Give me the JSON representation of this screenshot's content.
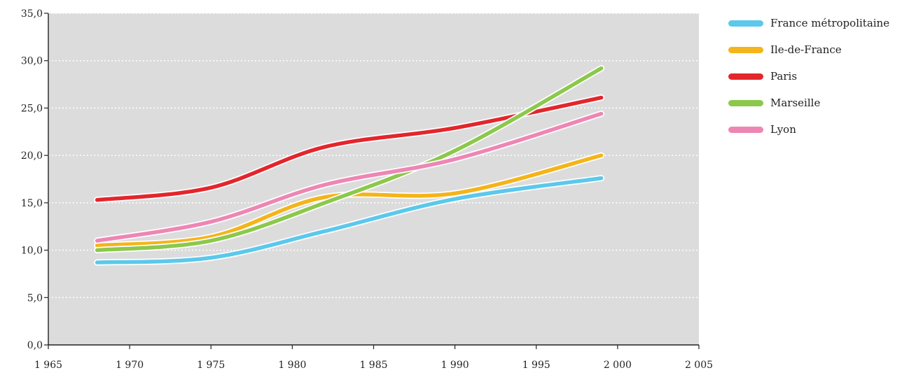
{
  "chart_data": {
    "type": "line",
    "title": "",
    "xlabel": "",
    "ylabel": "",
    "xlim": [
      1965,
      2005
    ],
    "ylim": [
      0,
      35
    ],
    "x_ticks": [
      "1 965",
      "1 970",
      "1 975",
      "1 980",
      "1 985",
      "1 990",
      "1 995",
      "2 000",
      "2 005"
    ],
    "y_ticks": [
      "0,0",
      "5,0",
      "10,0",
      "15,0",
      "20,0",
      "25,0",
      "30,0",
      "35,0"
    ],
    "grid": true,
    "legend_position": "right",
    "x": [
      1968,
      1975,
      1982,
      1990,
      1999
    ],
    "series": [
      {
        "name": "France métropolitaine",
        "color": "#5bc8ec",
        "values": [
          8.7,
          9.2,
          12.0,
          15.4,
          17.6
        ]
      },
      {
        "name": "Ile-de-France",
        "color": "#f4b41a",
        "values": [
          10.5,
          11.4,
          15.6,
          16.0,
          20.0
        ]
      },
      {
        "name": "Paris",
        "color": "#e3262c",
        "values": [
          15.3,
          16.6,
          20.9,
          22.9,
          26.1
        ]
      },
      {
        "name": "Marseille",
        "color": "#8cc84b",
        "values": [
          10.0,
          11.0,
          15.0,
          20.5,
          29.2
        ]
      },
      {
        "name": "Lyon",
        "color": "#ee86b4",
        "values": [
          11.0,
          13.0,
          16.9,
          19.6,
          24.4
        ]
      }
    ]
  }
}
